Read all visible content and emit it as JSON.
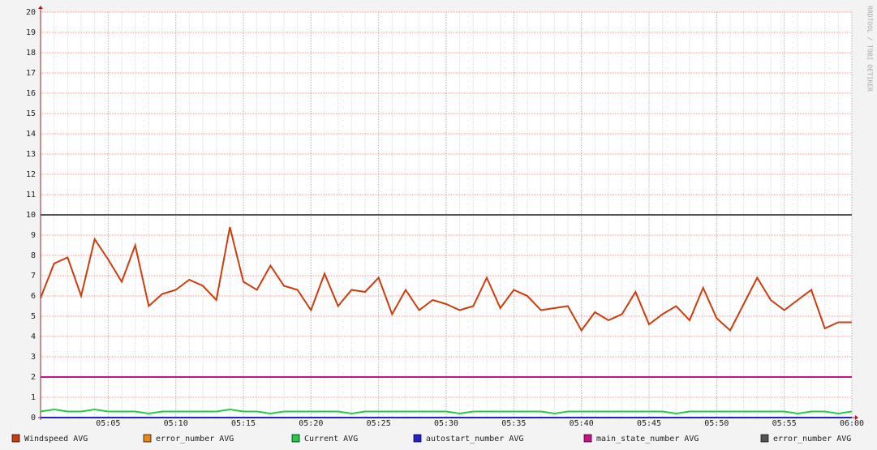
{
  "chart_data": {
    "type": "line",
    "watermark": "RRDTOOL / TOBI OETIKER",
    "categories": [
      null,
      null,
      null,
      null,
      null,
      "05:05",
      null,
      null,
      null,
      null,
      "05:10",
      null,
      null,
      null,
      null,
      "05:15",
      null,
      null,
      null,
      null,
      "05:20",
      null,
      null,
      null,
      null,
      "05:25",
      null,
      null,
      null,
      null,
      "05:30",
      null,
      null,
      null,
      null,
      "05:35",
      null,
      null,
      null,
      null,
      "05:40",
      null,
      null,
      null,
      null,
      "05:45",
      null,
      null,
      null,
      null,
      "05:50",
      null,
      null,
      null,
      null,
      "05:55",
      null,
      null,
      null,
      null,
      "06:00"
    ],
    "ylim": [
      0,
      20
    ],
    "yticks": [
      0,
      1,
      2,
      3,
      4,
      5,
      6,
      7,
      8,
      9,
      10,
      11,
      12,
      13,
      14,
      15,
      16,
      17,
      18,
      19,
      20
    ],
    "grid": true,
    "series": [
      {
        "name": "Windspeed AVG",
        "color": "#cc3c0c",
        "values": [
          5.9,
          7.6,
          7.9,
          6.0,
          8.8,
          7.8,
          6.7,
          8.5,
          5.5,
          6.1,
          6.3,
          6.8,
          6.5,
          5.8,
          9.4,
          6.7,
          6.3,
          7.5,
          6.5,
          6.3,
          5.3,
          7.1,
          5.5,
          6.3,
          6.2,
          6.9,
          5.1,
          6.3,
          5.3,
          5.8,
          5.6,
          5.3,
          5.5,
          6.9,
          5.4,
          6.3,
          6.0,
          5.3,
          5.4,
          5.5,
          4.3,
          5.2,
          4.8,
          5.1,
          6.2,
          4.6,
          5.1,
          5.5,
          4.8,
          6.4,
          4.9,
          4.3,
          5.6,
          6.9,
          5.8,
          5.3,
          5.8,
          6.3,
          4.4,
          4.7,
          4.7
        ]
      },
      {
        "name": "error_number AVG",
        "color": "#e8861c",
        "values": [
          0,
          0,
          0,
          0,
          0,
          0,
          0,
          0,
          0,
          0,
          0,
          0,
          0,
          0,
          0,
          0,
          0,
          0,
          0,
          0,
          0,
          0,
          0,
          0,
          0,
          0,
          0,
          0,
          0,
          0,
          0,
          0,
          0,
          0,
          0,
          0,
          0,
          0,
          0,
          0,
          0,
          0,
          0,
          0,
          0,
          0,
          0,
          0,
          0,
          0,
          0,
          0,
          0,
          0,
          0,
          0,
          0,
          0,
          0,
          0,
          0
        ]
      },
      {
        "name": "Current AVG",
        "color": "#22cc44",
        "values": [
          0.3,
          0.4,
          0.3,
          0.3,
          0.4,
          0.3,
          0.3,
          0.3,
          0.2,
          0.3,
          0.3,
          0.3,
          0.3,
          0.3,
          0.4,
          0.3,
          0.3,
          0.2,
          0.3,
          0.3,
          0.3,
          0.3,
          0.3,
          0.2,
          0.3,
          0.3,
          0.3,
          0.3,
          0.3,
          0.3,
          0.3,
          0.2,
          0.3,
          0.3,
          0.3,
          0.3,
          0.3,
          0.3,
          0.2,
          0.3,
          0.3,
          0.3,
          0.3,
          0.3,
          0.3,
          0.3,
          0.3,
          0.2,
          0.3,
          0.3,
          0.3,
          0.3,
          0.3,
          0.3,
          0.3,
          0.3,
          0.2,
          0.3,
          0.3,
          0.2,
          0.3
        ]
      },
      {
        "name": "autostart_number AVG",
        "color": "#2222cc",
        "values": [
          0,
          0,
          0,
          0,
          0,
          0,
          0,
          0,
          0,
          0,
          0,
          0,
          0,
          0,
          0,
          0,
          0,
          0,
          0,
          0,
          0,
          0,
          0,
          0,
          0,
          0,
          0,
          0,
          0,
          0,
          0,
          0,
          0,
          0,
          0,
          0,
          0,
          0,
          0,
          0,
          0,
          0,
          0,
          0,
          0,
          0,
          0,
          0,
          0,
          0,
          0,
          0,
          0,
          0,
          0,
          0,
          0,
          0,
          0,
          0,
          0
        ]
      },
      {
        "name": "main_state_number AVG",
        "color": "#cc1188",
        "values": [
          2,
          2,
          2,
          2,
          2,
          2,
          2,
          2,
          2,
          2,
          2,
          2,
          2,
          2,
          2,
          2,
          2,
          2,
          2,
          2,
          2,
          2,
          2,
          2,
          2,
          2,
          2,
          2,
          2,
          2,
          2,
          2,
          2,
          2,
          2,
          2,
          2,
          2,
          2,
          2,
          2,
          2,
          2,
          2,
          2,
          2,
          2,
          2,
          2,
          2,
          2,
          2,
          2,
          2,
          2,
          2,
          2,
          2,
          2,
          2,
          2
        ]
      },
      {
        "name": "error_number AVG",
        "color": "#555555",
        "values": [
          10,
          10,
          10,
          10,
          10,
          10,
          10,
          10,
          10,
          10,
          10,
          10,
          10,
          10,
          10,
          10,
          10,
          10,
          10,
          10,
          10,
          10,
          10,
          10,
          10,
          10,
          10,
          10,
          10,
          10,
          10,
          10,
          10,
          10,
          10,
          10,
          10,
          10,
          10,
          10,
          10,
          10,
          10,
          10,
          10,
          10,
          10,
          10,
          10,
          10,
          10,
          10,
          10,
          10,
          10,
          10,
          10,
          10,
          10,
          10,
          10
        ]
      }
    ]
  }
}
